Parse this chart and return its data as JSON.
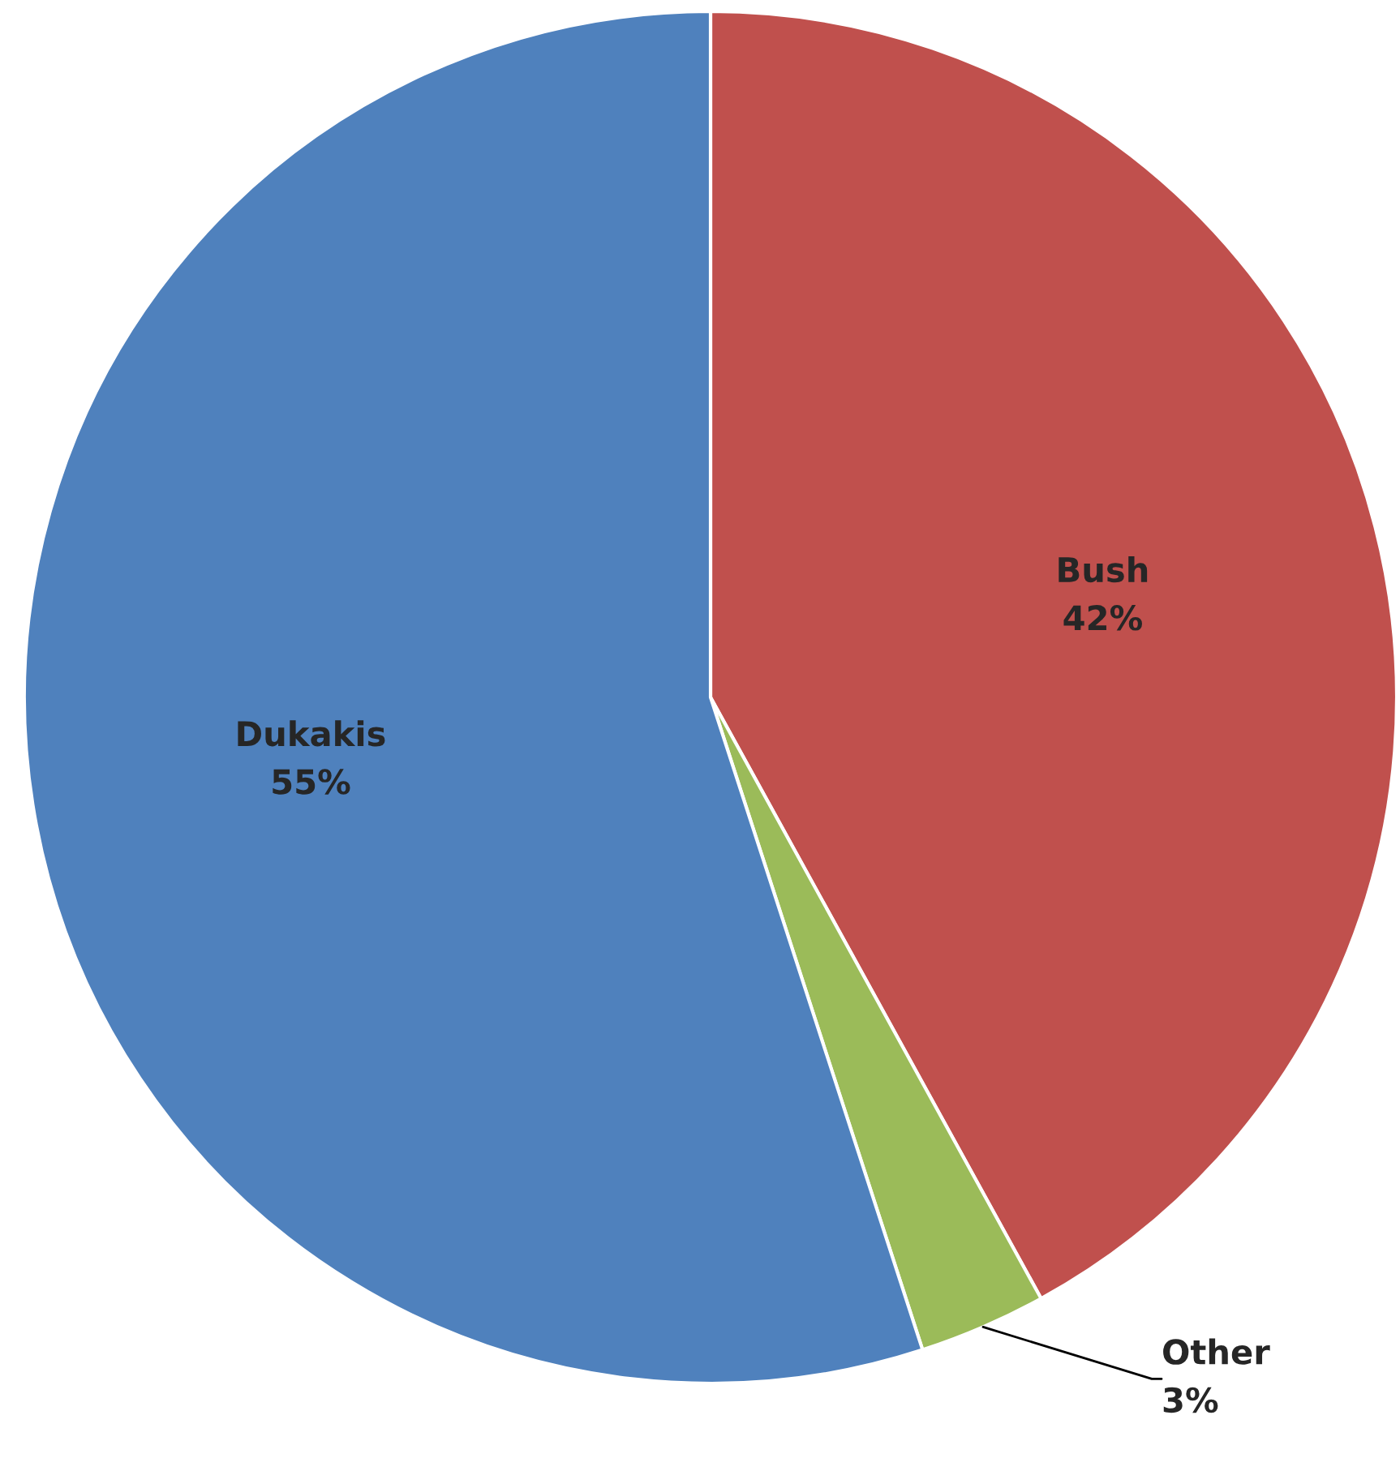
{
  "chart_data": {
    "type": "pie",
    "categories": [
      "Bush",
      "Other",
      "Dukakis"
    ],
    "values": [
      42,
      3,
      55
    ],
    "value_labels": [
      "42%",
      "3%",
      "55%"
    ],
    "colors": [
      "#c0504d",
      "#9bbb59",
      "#4f81bd"
    ]
  }
}
